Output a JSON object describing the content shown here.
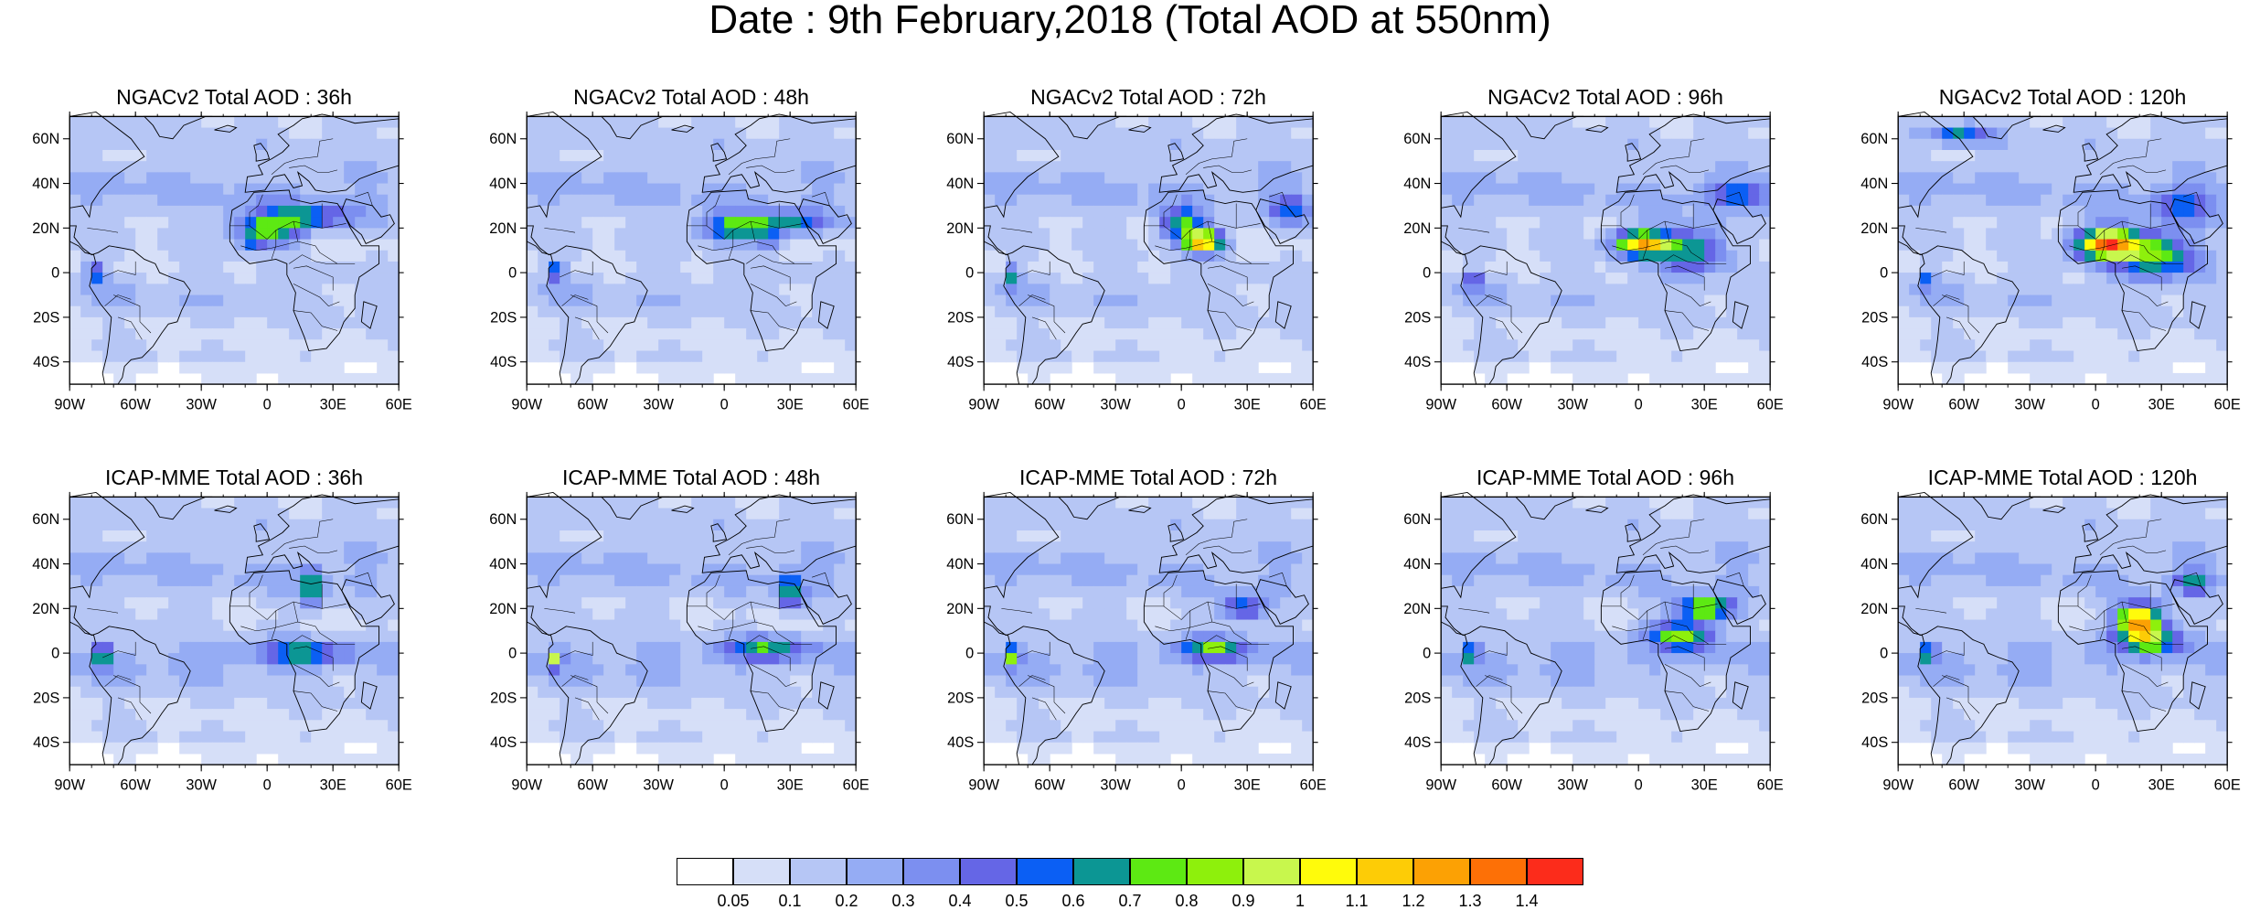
{
  "title": "Date : 9th February,2018 (Total AOD at 550nm)",
  "map_extent": {
    "lon": [
      -90,
      60
    ],
    "lat": [
      -50,
      70
    ]
  },
  "lon_ticks": [
    {
      "value": -90,
      "label": "90W"
    },
    {
      "value": -60,
      "label": "60W"
    },
    {
      "value": -30,
      "label": "30W"
    },
    {
      "value": 0,
      "label": "0"
    },
    {
      "value": 30,
      "label": "30E"
    },
    {
      "value": 60,
      "label": "60E"
    }
  ],
  "lat_ticks": [
    {
      "value": 60,
      "label": "60N"
    },
    {
      "value": 40,
      "label": "40N"
    },
    {
      "value": 20,
      "label": "20N"
    },
    {
      "value": 0,
      "label": "0"
    },
    {
      "value": -20,
      "label": "20S"
    },
    {
      "value": -40,
      "label": "40S"
    }
  ],
  "panels": [
    {
      "title": "NGACv2 Total AOD : 36h",
      "model": "NGACv2",
      "lead": "36h"
    },
    {
      "title": "NGACv2 Total AOD : 48h",
      "model": "NGACv2",
      "lead": "48h"
    },
    {
      "title": "NGACv2 Total AOD : 72h",
      "model": "NGACv2",
      "lead": "72h"
    },
    {
      "title": "NGACv2 Total AOD : 96h",
      "model": "NGACv2",
      "lead": "96h"
    },
    {
      "title": "NGACv2 Total AOD : 120h",
      "model": "NGACv2",
      "lead": "120h"
    },
    {
      "title": "ICAP-MME Total AOD : 36h",
      "model": "ICAP-MME",
      "lead": "36h"
    },
    {
      "title": "ICAP-MME Total AOD : 48h",
      "model": "ICAP-MME",
      "lead": "48h"
    },
    {
      "title": "ICAP-MME Total AOD : 72h",
      "model": "ICAP-MME",
      "lead": "72h"
    },
    {
      "title": "ICAP-MME Total AOD : 96h",
      "model": "ICAP-MME",
      "lead": "96h"
    },
    {
      "title": "ICAP-MME Total AOD : 120h",
      "model": "ICAP-MME",
      "lead": "120h"
    }
  ],
  "colorbar": {
    "colors": [
      "#ffffff",
      "#d6dff8",
      "#b6c6f5",
      "#95acf4",
      "#7c8ff0",
      "#6566e6",
      "#0b5ff4",
      "#0c9694",
      "#5de913",
      "#8ef00c",
      "#c8f74d",
      "#fffb0b",
      "#fdcc06",
      "#fca104",
      "#fd7006",
      "#fc2c1b"
    ],
    "labels": [
      "0.05",
      "0.1",
      "0.2",
      "0.3",
      "0.4",
      "0.5",
      "0.6",
      "0.7",
      "0.8",
      "0.9",
      "1",
      "1.1",
      "1.2",
      "1.3",
      "1.4"
    ]
  }
}
